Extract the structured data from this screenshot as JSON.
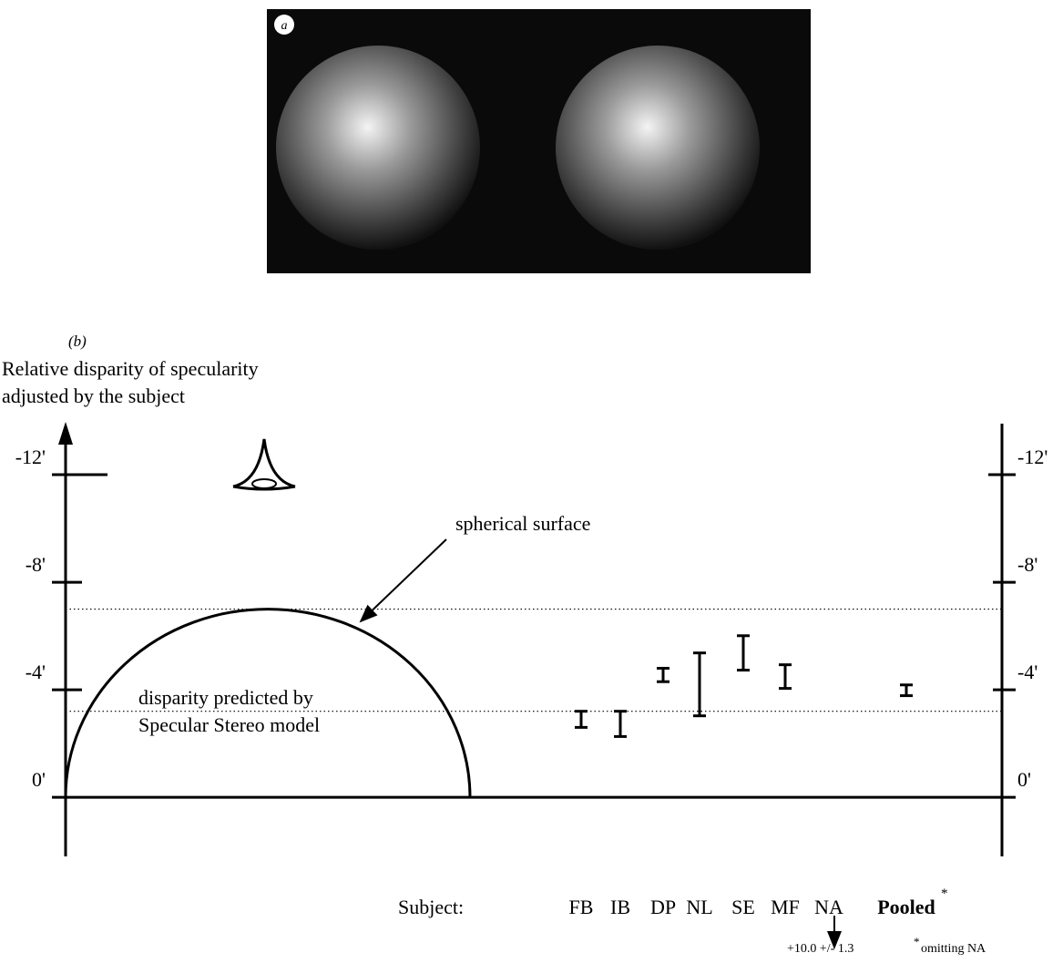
{
  "panel_a": {
    "label": "a"
  },
  "chart_data": {
    "type": "errorbar",
    "panel_label": "(b)",
    "y_label_lines": [
      "Relative disparity of specularity",
      "adjusted by the subject"
    ],
    "x_label": "Subject:",
    "categories": [
      "FB",
      "IB",
      "DP",
      "NL",
      "SE",
      "MF",
      "NA",
      "Pooled"
    ],
    "category_marker": "*",
    "series": [
      {
        "name": null,
        "color": "#000000",
        "values": [
          -2.9,
          -2.73,
          -4.55,
          -4.2,
          -5.37,
          -4.49,
          null,
          -3.98
        ],
        "errors": [
          0.3,
          0.47,
          0.25,
          1.17,
          0.64,
          0.44,
          null,
          0.2
        ]
      }
    ],
    "off_scale": {
      "category": "NA",
      "label": "+10.0 +/- 1.3"
    },
    "footnote": {
      "marker": "*",
      "text": "omitting NA"
    },
    "reference_lines": [
      {
        "value": -7,
        "label": "spherical surface"
      },
      {
        "value": -3.2,
        "label_lines": [
          "disparity predicted by",
          "Specular Stereo model"
        ]
      }
    ],
    "ylim": [
      2.2,
      -13.9
    ],
    "yticks": [
      {
        "value": 0,
        "label": "0'"
      },
      {
        "value": -4,
        "label": "-4'"
      },
      {
        "value": -8,
        "label": "-8'"
      },
      {
        "value": -12,
        "label": "-12'"
      }
    ],
    "y2lim": [
      2.2,
      -13.9
    ],
    "y2ticks": [
      {
        "value": 0,
        "label": "0'"
      },
      {
        "value": -4,
        "label": "-4'"
      },
      {
        "value": -8,
        "label": "-8'"
      },
      {
        "value": -12,
        "label": "-12'"
      }
    ]
  }
}
